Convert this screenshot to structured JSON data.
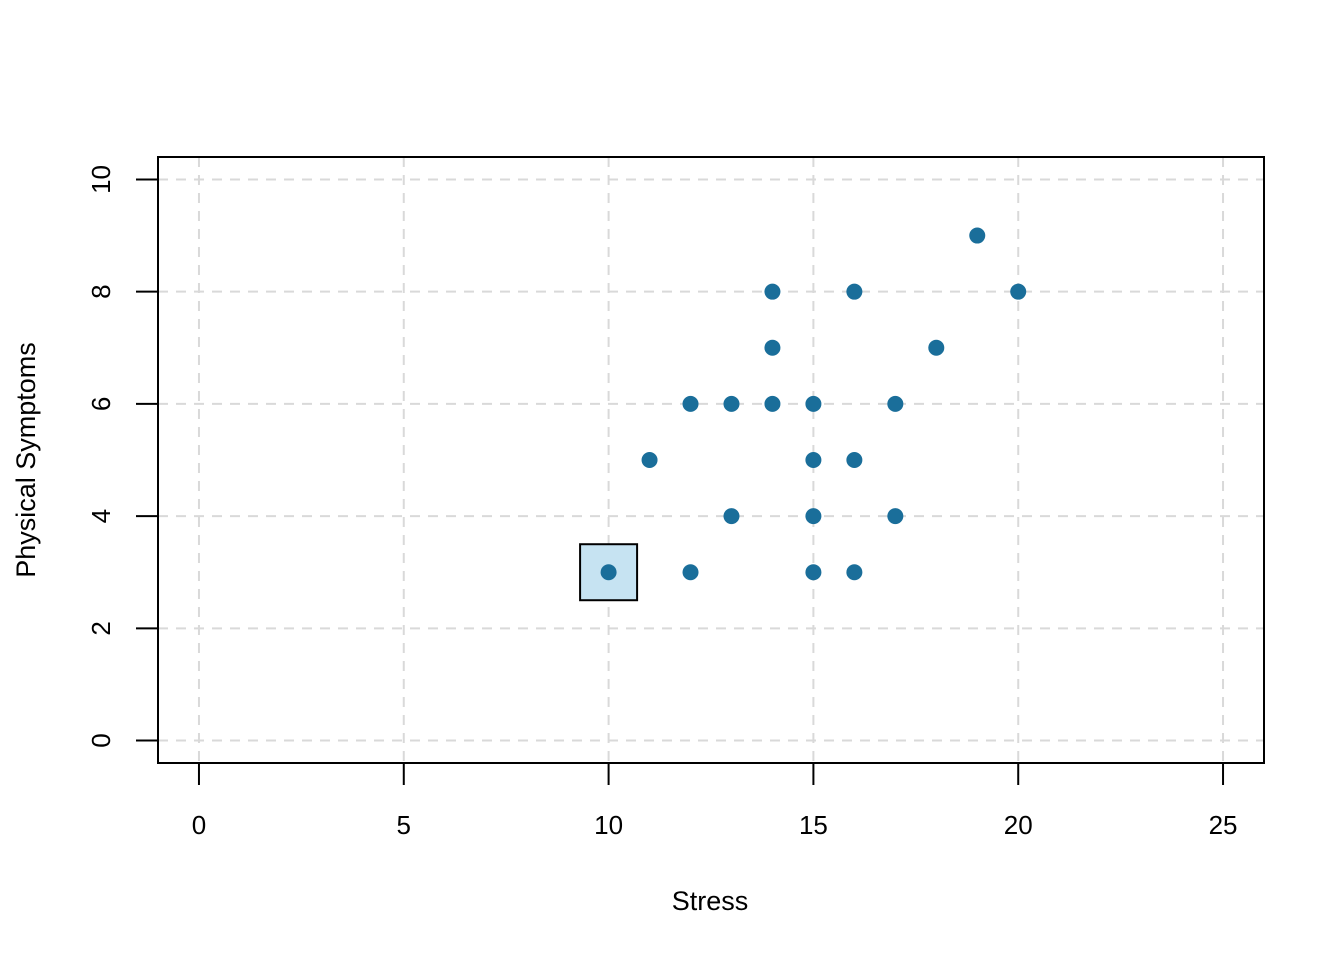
{
  "chart_data": {
    "type": "scatter",
    "xlabel": "Stress",
    "ylabel": "Physical Symptoms",
    "xlim": [
      -1,
      26
    ],
    "ylim": [
      -0.4,
      10.4
    ],
    "xticks": [
      0,
      5,
      10,
      15,
      20,
      25
    ],
    "yticks": [
      0,
      2,
      4,
      6,
      8,
      10
    ],
    "xtick_labels": [
      "0",
      "5",
      "10",
      "15",
      "20",
      "25"
    ],
    "ytick_labels": [
      "0",
      "2",
      "4",
      "6",
      "8",
      "10"
    ],
    "grid": true,
    "point_color": "#1a6e9a",
    "highlight_fill": "#c6e3f2",
    "points": [
      {
        "x": 19,
        "y": 9
      },
      {
        "x": 14,
        "y": 8
      },
      {
        "x": 16,
        "y": 8
      },
      {
        "x": 20,
        "y": 8
      },
      {
        "x": 14,
        "y": 7
      },
      {
        "x": 18,
        "y": 7
      },
      {
        "x": 12,
        "y": 6
      },
      {
        "x": 13,
        "y": 6
      },
      {
        "x": 14,
        "y": 6
      },
      {
        "x": 15,
        "y": 6
      },
      {
        "x": 17,
        "y": 6
      },
      {
        "x": 11,
        "y": 5
      },
      {
        "x": 15,
        "y": 5
      },
      {
        "x": 16,
        "y": 5
      },
      {
        "x": 13,
        "y": 4
      },
      {
        "x": 15,
        "y": 4
      },
      {
        "x": 17,
        "y": 4
      },
      {
        "x": 10,
        "y": 3
      },
      {
        "x": 12,
        "y": 3
      },
      {
        "x": 15,
        "y": 3
      },
      {
        "x": 16,
        "y": 3
      }
    ],
    "highlighted_point": {
      "x": 10,
      "y": 3
    }
  }
}
